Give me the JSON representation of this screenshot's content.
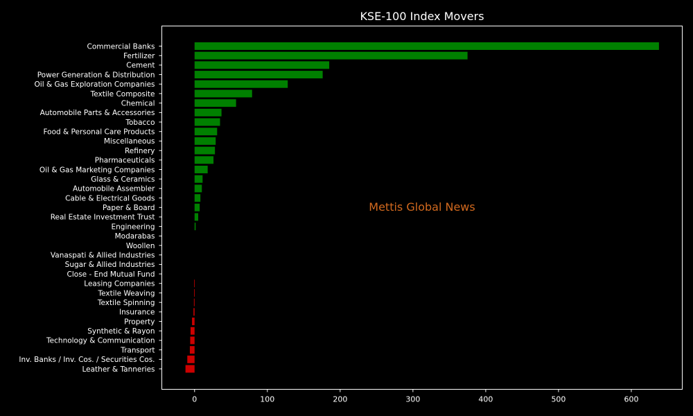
{
  "chart_data": {
    "type": "bar",
    "orientation": "horizontal",
    "title": "KSE-100 Index Movers",
    "xlabel": "",
    "ylabel": "",
    "xlim": [
      -45,
      670
    ],
    "xticks": [
      0,
      100,
      200,
      300,
      400,
      500,
      600
    ],
    "grid": false,
    "categories": [
      "Commercial Banks",
      "Fertilizer",
      "Cement",
      "Power Generation & Distribution",
      "Oil & Gas Exploration Companies",
      "Textile Composite",
      "Chemical",
      "Automobile Parts & Accessories",
      "Tobacco",
      "Food & Personal Care Products",
      "Miscellaneous",
      "Refinery",
      "Pharmaceuticals",
      "Oil & Gas Marketing Companies",
      "Glass & Ceramics",
      "Automobile Assembler",
      "Cable & Electrical Goods",
      "Paper & Board",
      "Real Estate Investment Trust",
      "Engineering",
      "Modarabas",
      "Woollen",
      "Vanaspati & Allied Industries",
      "Sugar & Allied Industries",
      "Close - End Mutual Fund",
      "Leasing Companies",
      "Textile Weaving",
      "Textile Spinning",
      "Insurance",
      "Property",
      "Synthetic & Rayon",
      "Technology & Communication",
      "Transport",
      "Inv. Banks / Inv. Cos. / Securities Cos.",
      "Leather & Tanneries"
    ],
    "values": [
      638,
      375,
      185,
      176,
      128,
      79,
      57,
      37,
      35,
      31,
      29,
      28,
      26,
      18,
      11,
      10,
      8,
      7,
      5,
      1.5,
      0,
      0,
      0,
      0,
      0,
      -0.5,
      -0.7,
      -0.9,
      -1.5,
      -3.5,
      -5.5,
      -6,
      -6.5,
      -10,
      -12.5
    ],
    "colors": {
      "positive": "#008000",
      "negative": "#cc0000"
    },
    "watermark": {
      "text": "Mettis Global News",
      "color": "#d2691e"
    }
  },
  "style": {
    "background": "#000000",
    "foreground": "#ffffff"
  }
}
